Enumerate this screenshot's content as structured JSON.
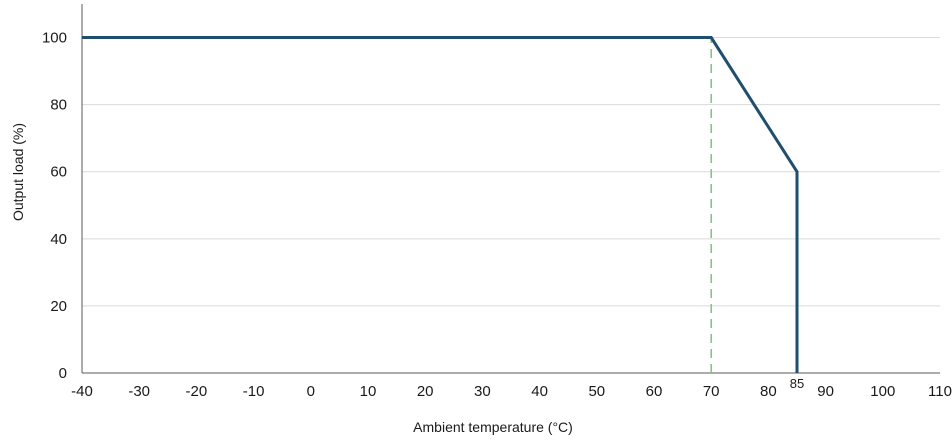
{
  "chart_data": {
    "type": "line",
    "title": "",
    "xlabel": "Ambient temperature (°C)",
    "ylabel": "Output load (%)",
    "xlim": [
      -40,
      110
    ],
    "ylim": [
      0,
      110
    ],
    "x_ticks": [
      -40,
      -30,
      -20,
      -10,
      0,
      10,
      20,
      30,
      40,
      50,
      60,
      70,
      80,
      90,
      100,
      110
    ],
    "y_ticks": [
      0,
      20,
      40,
      60,
      80,
      100
    ],
    "grid": "horizontal",
    "legend": "none",
    "series": [
      {
        "x": [
          -40,
          70,
          85,
          85
        ],
        "y": [
          100,
          100,
          60,
          0
        ],
        "color": "#1f4e6e"
      }
    ],
    "reference_lines": [
      {
        "x": 70,
        "y_from": 0,
        "y_to": 100,
        "style": "dashed",
        "color": "#7cc47e"
      }
    ],
    "annotations": [
      {
        "text": "85",
        "x": 85,
        "y": 0
      }
    ]
  }
}
